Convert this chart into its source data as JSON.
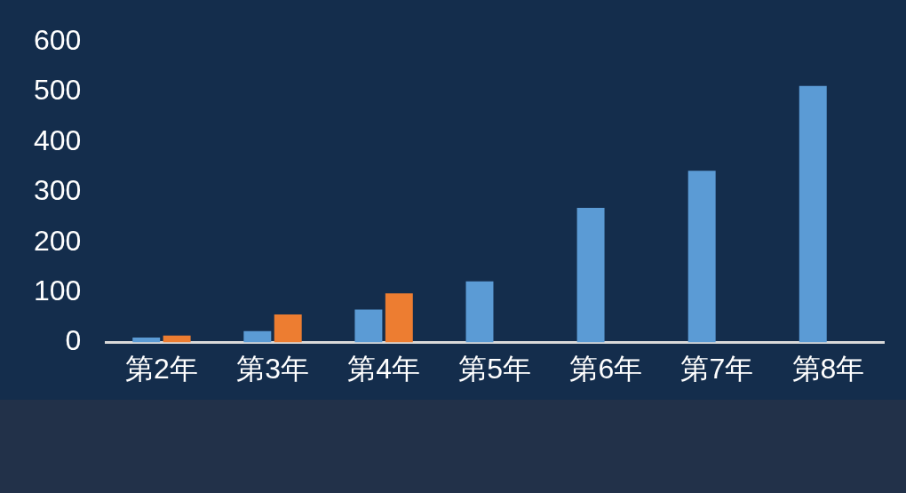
{
  "chart_data": {
    "type": "bar",
    "categories": [
      "第2年",
      "第3年",
      "第4年",
      "第5年",
      "第6年",
      "第7年",
      "第8年"
    ],
    "series": [
      {
        "color": "#5b9bd5",
        "values": [
          10,
          23,
          66,
          122,
          269,
          343,
          512
        ]
      },
      {
        "color": "#ed7d31",
        "values": [
          14,
          56,
          98,
          null,
          null,
          null,
          null
        ]
      }
    ],
    "ylim": [
      0,
      600
    ],
    "yticks": [
      0,
      100,
      200,
      300,
      400,
      500,
      600
    ],
    "grid": false,
    "legend": false
  }
}
